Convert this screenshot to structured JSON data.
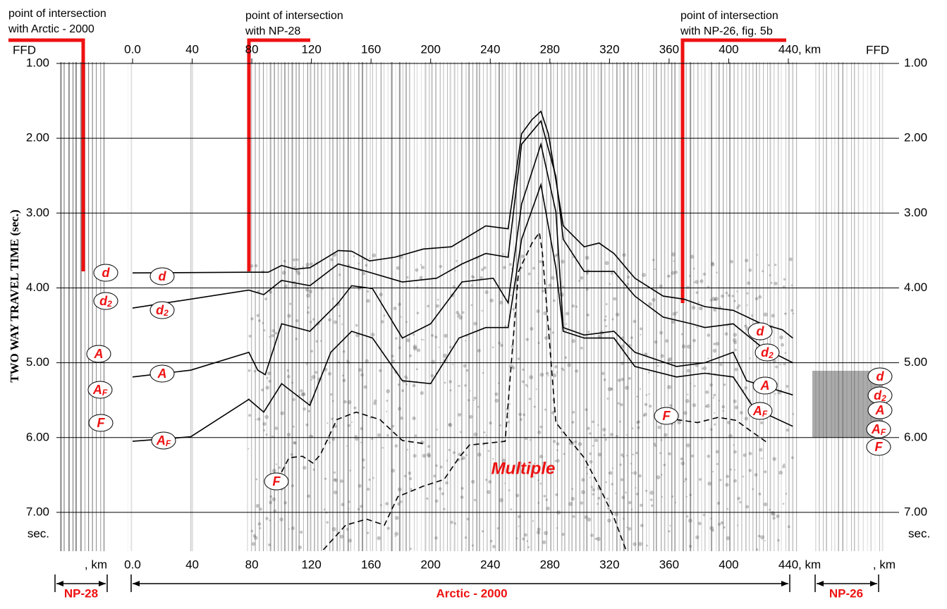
{
  "chart_data": {
    "type": "line",
    "y_label": "TWO WAY TRAVEL TIME (sec.)",
    "y_unit": "sec.",
    "x_unit": ", km",
    "panel_label": "FFD",
    "xlim": [
      0,
      440
    ],
    "ylim": [
      1.0,
      7.5
    ],
    "y_reversed": true,
    "grid": true,
    "xticks": [
      {
        "value": 0,
        "label": "0.0"
      },
      40,
      80,
      120,
      160,
      200,
      240,
      280,
      320,
      360,
      400,
      440
    ],
    "yticks": [
      {
        "value": 1,
        "label": "1.00"
      },
      {
        "value": 2,
        "label": "2.00"
      },
      {
        "value": 3,
        "label": "3.00"
      },
      {
        "value": 4,
        "label": "4.00"
      },
      {
        "value": 5,
        "label": "5.00"
      },
      {
        "value": 6,
        "label": "6.00"
      },
      {
        "value": 7,
        "label": "7.00"
      }
    ],
    "annotations": {
      "arctic_intersection": [
        "point of intersection",
        "with Arctic - 2000"
      ],
      "np28_intersection": [
        "point of intersection",
        "with NP-28"
      ],
      "np26_intersection": [
        "point of intersection",
        "with NP-26, fig. 5b"
      ]
    },
    "profiles": {
      "left": "NP-28",
      "main": "Arctic - 2000",
      "right": "NP-26"
    },
    "series": [
      {
        "name": "d",
        "color": "#000000",
        "dash": false,
        "x": [
          0,
          78,
          91,
          100,
          109,
          119,
          138,
          147,
          159,
          176,
          195,
          214,
          223,
          237,
          252,
          261,
          268,
          274,
          279,
          289,
          303,
          313,
          323,
          337,
          356,
          370,
          384,
          403,
          422,
          436,
          443
        ],
        "values": [
          3.8,
          3.79,
          3.79,
          3.7,
          3.75,
          3.73,
          3.5,
          3.51,
          3.64,
          3.59,
          3.48,
          3.45,
          3.34,
          3.17,
          3.21,
          1.94,
          1.75,
          1.64,
          1.94,
          3.17,
          3.45,
          3.4,
          3.54,
          3.87,
          4.11,
          4.15,
          4.25,
          4.3,
          4.48,
          4.56,
          4.67
        ]
      },
      {
        "name": "d2",
        "color": "#000000",
        "dash": false,
        "x": [
          0,
          78,
          88,
          100,
          119,
          138,
          157,
          181,
          204,
          221,
          237,
          252,
          261,
          274,
          284,
          289,
          303,
          323,
          337,
          356,
          375,
          384,
          403,
          422,
          443
        ],
        "values": [
          4.27,
          4.03,
          4.09,
          3.9,
          3.97,
          3.68,
          3.78,
          3.92,
          3.87,
          3.68,
          3.54,
          3.59,
          2.08,
          1.77,
          2.51,
          3.35,
          3.78,
          3.78,
          4.11,
          4.39,
          4.48,
          4.53,
          4.48,
          4.79,
          5.0
        ]
      },
      {
        "name": "A",
        "color": "#000000",
        "dash": false,
        "x": [
          0,
          39,
          78,
          84,
          89,
          100,
          119,
          138,
          147,
          161,
          181,
          200,
          221,
          242,
          252,
          261,
          274,
          284,
          289,
          303,
          323,
          337,
          365,
          384,
          403,
          412,
          443
        ],
        "values": [
          5.19,
          5.1,
          4.86,
          5.1,
          5.16,
          4.48,
          4.58,
          4.2,
          3.97,
          4.01,
          4.67,
          4.48,
          3.92,
          3.87,
          4.2,
          2.88,
          2.08,
          2.98,
          4.53,
          4.63,
          4.58,
          4.86,
          5.05,
          5.0,
          4.86,
          5.24,
          5.43
        ]
      },
      {
        "name": "AF",
        "color": "#000000",
        "dash": false,
        "x": [
          0,
          39,
          78,
          88,
          100,
          119,
          133,
          147,
          161,
          181,
          200,
          219,
          237,
          252,
          261,
          274,
          284,
          289,
          303,
          323,
          337,
          365,
          384,
          403,
          417,
          443
        ],
        "values": [
          6.05,
          5.99,
          5.49,
          5.66,
          5.28,
          5.57,
          4.86,
          4.58,
          4.67,
          5.24,
          5.28,
          4.67,
          4.53,
          4.53,
          3.35,
          2.62,
          3.73,
          4.58,
          4.67,
          4.67,
          5.05,
          5.19,
          5.14,
          5.19,
          5.61,
          5.85
        ]
      },
      {
        "name": "F",
        "color": "#000000",
        "dash": true,
        "x": [
          100,
          105,
          114,
          121,
          126,
          137,
          150,
          166,
          181,
          195,
          280,
          365,
          379,
          393,
          405,
          414,
          426
        ],
        "values": [
          6.46,
          6.27,
          6.25,
          6.34,
          6.23,
          5.76,
          5.66,
          5.76,
          6.04,
          6.08,
          null,
          5.76,
          5.8,
          5.73,
          5.77,
          5.9,
          6.07
        ]
      },
      {
        "name": "Multiple",
        "color": "#000000",
        "dash": true,
        "x": [
          128,
          143,
          157,
          169,
          178,
          195,
          209,
          219,
          226,
          250,
          259,
          268,
          273,
          275,
          284,
          303,
          313,
          323,
          331
        ],
        "values": [
          7.5,
          7.17,
          7.09,
          7.17,
          6.79,
          6.65,
          6.56,
          6.27,
          6.1,
          6.05,
          3.78,
          3.4,
          3.26,
          3.54,
          5.8,
          6.27,
          6.65,
          7.07,
          7.5
        ]
      }
    ]
  }
}
